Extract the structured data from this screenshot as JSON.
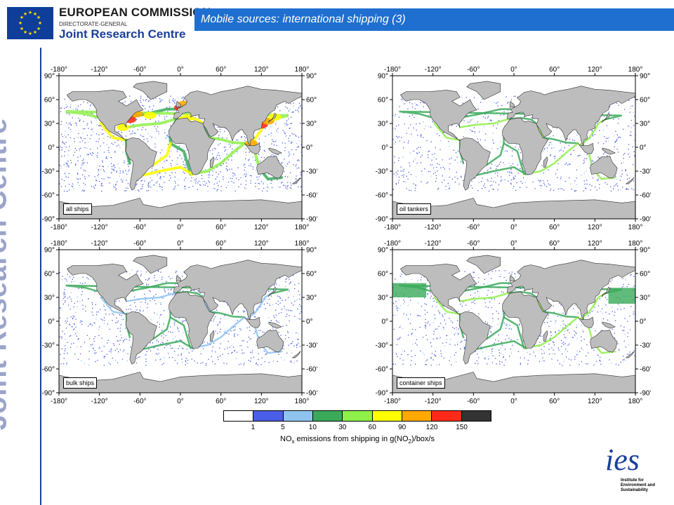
{
  "header": {
    "org_line1": "EUROPEAN COMMISSION",
    "org_line2": "DIRECTORATE-GENERAL",
    "org_line3": "Joint Research Centre",
    "slide_title": "Mobile sources: international shipping (3)"
  },
  "sidebar": {
    "vertical_label": "Joint Research Centre"
  },
  "maps": {
    "lon_ticks": [
      "-180°",
      "-120°",
      "-60°",
      "0°",
      "60°",
      "120°",
      "180°"
    ],
    "lat_ticks": [
      "90°",
      "60°",
      "30°",
      "0°",
      "-30°",
      "-60°",
      "-90°"
    ],
    "panels": [
      {
        "label": "all ships"
      },
      {
        "label": "oil tankers"
      },
      {
        "label": "bulk ships"
      },
      {
        "label": "container ships"
      }
    ]
  },
  "colorbar": {
    "colors": [
      "#ffffff",
      "#4a5de6",
      "#8fc4f0",
      "#3aaa5a",
      "#8ff04a",
      "#ffff00",
      "#ffa800",
      "#ff2a1a",
      "#333333"
    ],
    "ticks": [
      "1",
      "5",
      "10",
      "30",
      "60",
      "90",
      "120",
      "150"
    ],
    "caption": "NOx emissions from shipping in g(NO2)/box/s"
  },
  "footer": {
    "ies_mark": "ies",
    "ies_text": "Institute for Environment and Sustainability"
  }
}
